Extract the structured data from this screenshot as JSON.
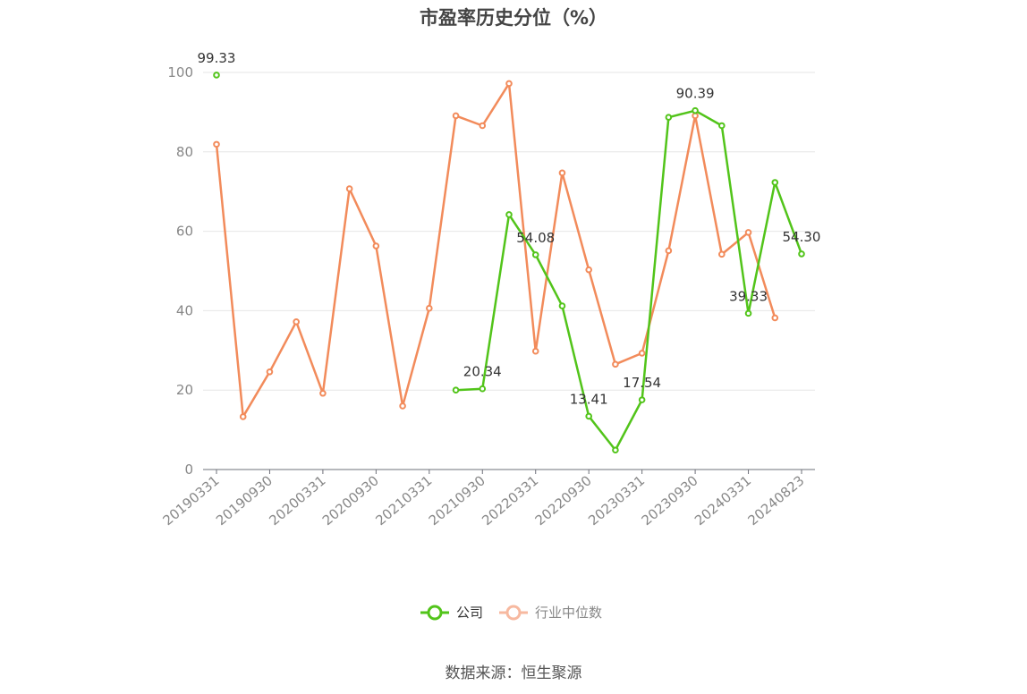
{
  "chart_data": {
    "type": "line",
    "title": "市盈率历史分位（%）",
    "x": [
      "20190331",
      "20190630",
      "20190930",
      "20191231",
      "20200331",
      "20200630",
      "20200930",
      "20201231",
      "20210331",
      "20210630",
      "20210930",
      "20211231",
      "20220331",
      "20220630",
      "20220930",
      "20221231",
      "20230331",
      "20230630",
      "20230930",
      "20231231",
      "20240331",
      "20240630",
      "20240823"
    ],
    "x_tick_labels": [
      "20190331",
      "20190930",
      "20200331",
      "20200930",
      "20210331",
      "20210930",
      "20220331",
      "20220930",
      "20230331",
      "20230930",
      "20240331",
      "20240823"
    ],
    "ylim": [
      0,
      100
    ],
    "y_ticks": [
      0,
      20,
      40,
      60,
      80,
      100
    ],
    "grid": true,
    "legend_position": "bottom",
    "series": [
      {
        "name": "公司",
        "color": "#52c41a",
        "values": [
          99.33,
          null,
          null,
          null,
          null,
          null,
          null,
          null,
          null,
          20.0,
          20.34,
          64.2,
          54.08,
          41.2,
          13.41,
          4.9,
          17.54,
          88.7,
          90.39,
          86.6,
          39.33,
          72.3,
          54.3
        ]
      },
      {
        "name": "行业中位数",
        "color": "#f28b5b",
        "values": [
          81.9,
          13.3,
          24.6,
          37.2,
          19.2,
          70.7,
          56.3,
          16.0,
          40.6,
          89.1,
          86.6,
          97.2,
          29.8,
          74.7,
          50.3,
          26.5,
          29.3,
          55.1,
          89.1,
          54.2,
          59.7,
          38.2,
          null
        ]
      }
    ],
    "data_labels": [
      {
        "series": 0,
        "index": 0,
        "text": "99.33"
      },
      {
        "series": 0,
        "index": 10,
        "text": "20.34"
      },
      {
        "series": 0,
        "index": 12,
        "text": "54.08"
      },
      {
        "series": 0,
        "index": 14,
        "text": "13.41"
      },
      {
        "series": 0,
        "index": 16,
        "text": "17.54"
      },
      {
        "series": 0,
        "index": 18,
        "text": "90.39"
      },
      {
        "series": 0,
        "index": 20,
        "text": "39.33"
      },
      {
        "series": 0,
        "index": 22,
        "text": "54.30"
      }
    ]
  },
  "legend": {
    "company_label": "公司",
    "industry_label": "行业中位数"
  },
  "source_text": "数据来源：恒生聚源"
}
